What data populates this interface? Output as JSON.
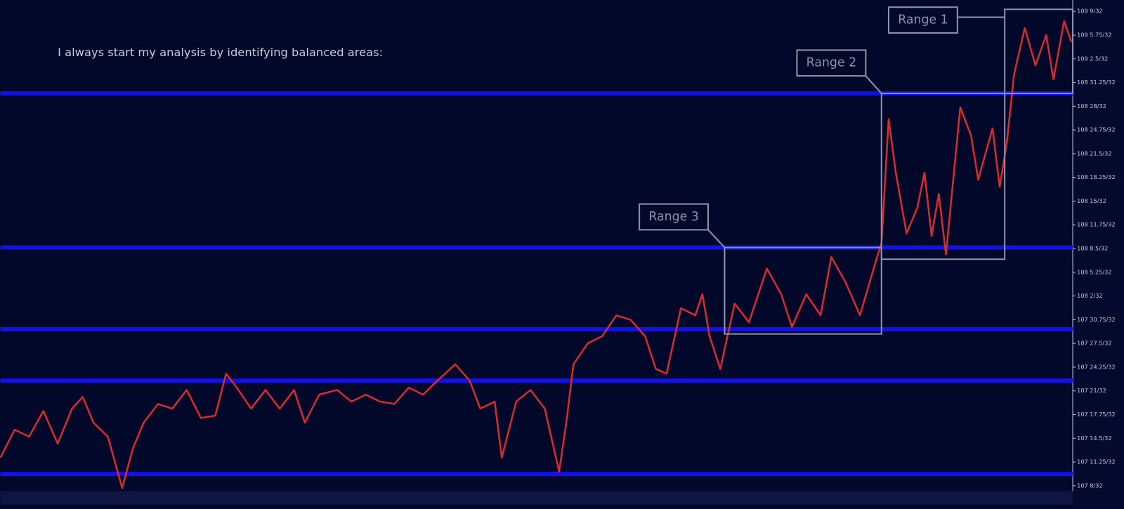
{
  "chart_data": {
    "type": "line",
    "title": "I always start my analysis by identifying balanced areas:",
    "color": "#d62c2c",
    "xlim": [
      0,
      1497
    ],
    "ylim": [
      107.23,
      109.33
    ],
    "yticks": [
      {
        "value": 109.28125,
        "label": "109 9/32"
      },
      {
        "value": 109.1796875,
        "label": "109 5.75/32"
      },
      {
        "value": 109.078125,
        "label": "109 2.5/32"
      },
      {
        "value": 108.9765625,
        "label": "108 31.25/32"
      },
      {
        "value": 108.875,
        "label": "108 28/32"
      },
      {
        "value": 108.7734375,
        "label": "108 24.75/32"
      },
      {
        "value": 108.671875,
        "label": "108 21.5/32"
      },
      {
        "value": 108.5703125,
        "label": "108 18.25/32"
      },
      {
        "value": 108.46875,
        "label": "108 15/32"
      },
      {
        "value": 108.3671875,
        "label": "108 11.75/32"
      },
      {
        "value": 108.265625,
        "label": "108 8.5/32"
      },
      {
        "value": 108.1640625,
        "label": "108 5.25/32"
      },
      {
        "value": 108.0625,
        "label": "108 2/32"
      },
      {
        "value": 107.9609375,
        "label": "107 30.75/32"
      },
      {
        "value": 107.859375,
        "label": "107 27.5/32"
      },
      {
        "value": 107.7578125,
        "label": "107 24.25/32"
      },
      {
        "value": 107.65625,
        "label": "107 21/32"
      },
      {
        "value": 107.5546875,
        "label": "107 17.75/32"
      },
      {
        "value": 107.453125,
        "label": "107 14.5/32"
      },
      {
        "value": 107.3515625,
        "label": "107 11.25/32"
      },
      {
        "value": 107.25,
        "label": "107 8/32"
      }
    ],
    "x": [
      0,
      20,
      40,
      60,
      80,
      100,
      115,
      130,
      150,
      170,
      185,
      200,
      220,
      240,
      260,
      280,
      300,
      315,
      330,
      350,
      370,
      390,
      410,
      425,
      445,
      470,
      490,
      510,
      530,
      550,
      570,
      590,
      610,
      635,
      655,
      670,
      690,
      700,
      720,
      740,
      760,
      780,
      790,
      800,
      820,
      840,
      860,
      880,
      900,
      915,
      930,
      950,
      970,
      980,
      990,
      1005,
      1025,
      1045,
      1070,
      1090,
      1105,
      1125,
      1145,
      1160,
      1180,
      1200,
      1220,
      1230,
      1240,
      1250,
      1265,
      1280,
      1290,
      1300,
      1310,
      1320,
      1340,
      1355,
      1365,
      1385,
      1395,
      1405,
      1415,
      1430,
      1445,
      1460,
      1470,
      1485,
      1495
    ],
    "values": [
      107.37,
      107.49,
      107.46,
      107.57,
      107.43,
      107.58,
      107.63,
      107.52,
      107.46,
      107.24,
      107.41,
      107.52,
      107.6,
      107.58,
      107.66,
      107.54,
      107.55,
      107.73,
      107.67,
      107.58,
      107.66,
      107.58,
      107.66,
      107.52,
      107.64,
      107.66,
      107.61,
      107.64,
      107.61,
      107.6,
      107.67,
      107.64,
      107.7,
      107.77,
      107.7,
      107.58,
      107.61,
      107.37,
      107.61,
      107.66,
      107.58,
      107.31,
      107.52,
      107.77,
      107.86,
      107.89,
      107.98,
      107.96,
      107.89,
      107.75,
      107.73,
      108.01,
      107.98,
      108.07,
      107.89,
      107.75,
      108.03,
      107.95,
      108.18,
      108.07,
      107.93,
      108.07,
      107.98,
      108.23,
      108.12,
      107.98,
      108.19,
      108.29,
      108.82,
      108.59,
      108.33,
      108.44,
      108.59,
      108.32,
      108.5,
      108.24,
      108.87,
      108.75,
      108.56,
      108.78,
      108.53,
      108.72,
      109.01,
      109.21,
      109.05,
      109.18,
      108.99,
      109.24,
      109.15
    ],
    "levels": [
      108.93,
      108.27,
      107.92,
      107.7,
      107.3
    ],
    "level_color": "#1212e6",
    "ranges": [
      {
        "name": "Range 1",
        "x": [
          1402,
          1497
        ],
        "y": [
          108.93,
          109.29
        ]
      },
      {
        "name": "Range 2",
        "x": [
          1230,
          1402
        ],
        "y": [
          108.22,
          108.93
        ]
      },
      {
        "name": "Range 3",
        "x": [
          1011,
          1230
        ],
        "y": [
          107.9,
          108.27
        ]
      }
    ],
    "range_color": "#8d93a8"
  }
}
